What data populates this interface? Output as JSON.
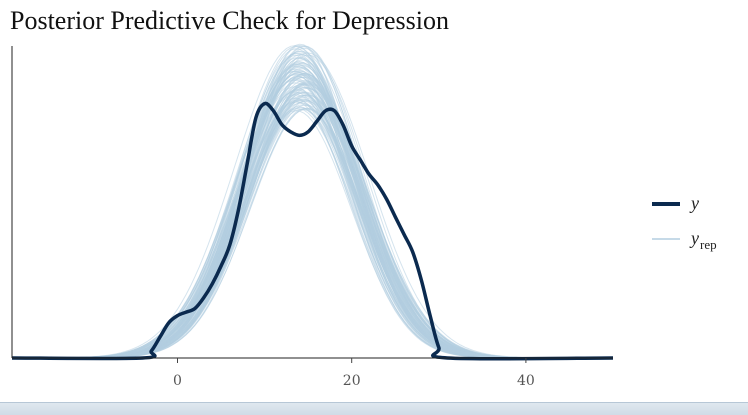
{
  "title": "Posterior Predictive Check for Depression",
  "chart_data": {
    "type": "line",
    "xlim": [
      -19,
      50
    ],
    "ylim": [
      0,
      0.09
    ],
    "x_ticks": [
      0,
      20,
      40
    ],
    "grid": false,
    "legend_position": "right",
    "series": [
      {
        "name": "y",
        "color": "#0b2a4f",
        "x": [
          -19,
          -4,
          -3,
          -2,
          -1,
          0,
          1,
          2,
          3,
          4,
          5,
          6,
          7,
          8,
          9,
          10,
          11,
          12,
          13,
          14,
          15,
          16,
          17,
          18,
          19,
          20,
          21,
          22,
          23,
          24,
          25,
          26,
          27,
          28,
          29,
          30,
          31,
          50
        ],
        "y": [
          0,
          0,
          0.002,
          0.006,
          0.01,
          0.012,
          0.013,
          0.014,
          0.017,
          0.021,
          0.026,
          0.032,
          0.042,
          0.055,
          0.068,
          0.072,
          0.07,
          0.066,
          0.064,
          0.063,
          0.064,
          0.067,
          0.07,
          0.07,
          0.066,
          0.06,
          0.056,
          0.052,
          0.049,
          0.045,
          0.04,
          0.035,
          0.03,
          0.022,
          0.012,
          0.003,
          0,
          0
        ]
      },
      {
        "name": "y_rep",
        "color": "#b3cde0",
        "mean": 14.2,
        "sd": 6.6,
        "peak_range": [
          0.07,
          0.089
        ],
        "draws": 100
      }
    ],
    "legend": [
      {
        "label": "y",
        "sub": "",
        "color": "#0b2a4f",
        "width": 4
      },
      {
        "label": "y",
        "sub": "rep",
        "color": "#b3cde0",
        "width": 1.5
      }
    ]
  }
}
